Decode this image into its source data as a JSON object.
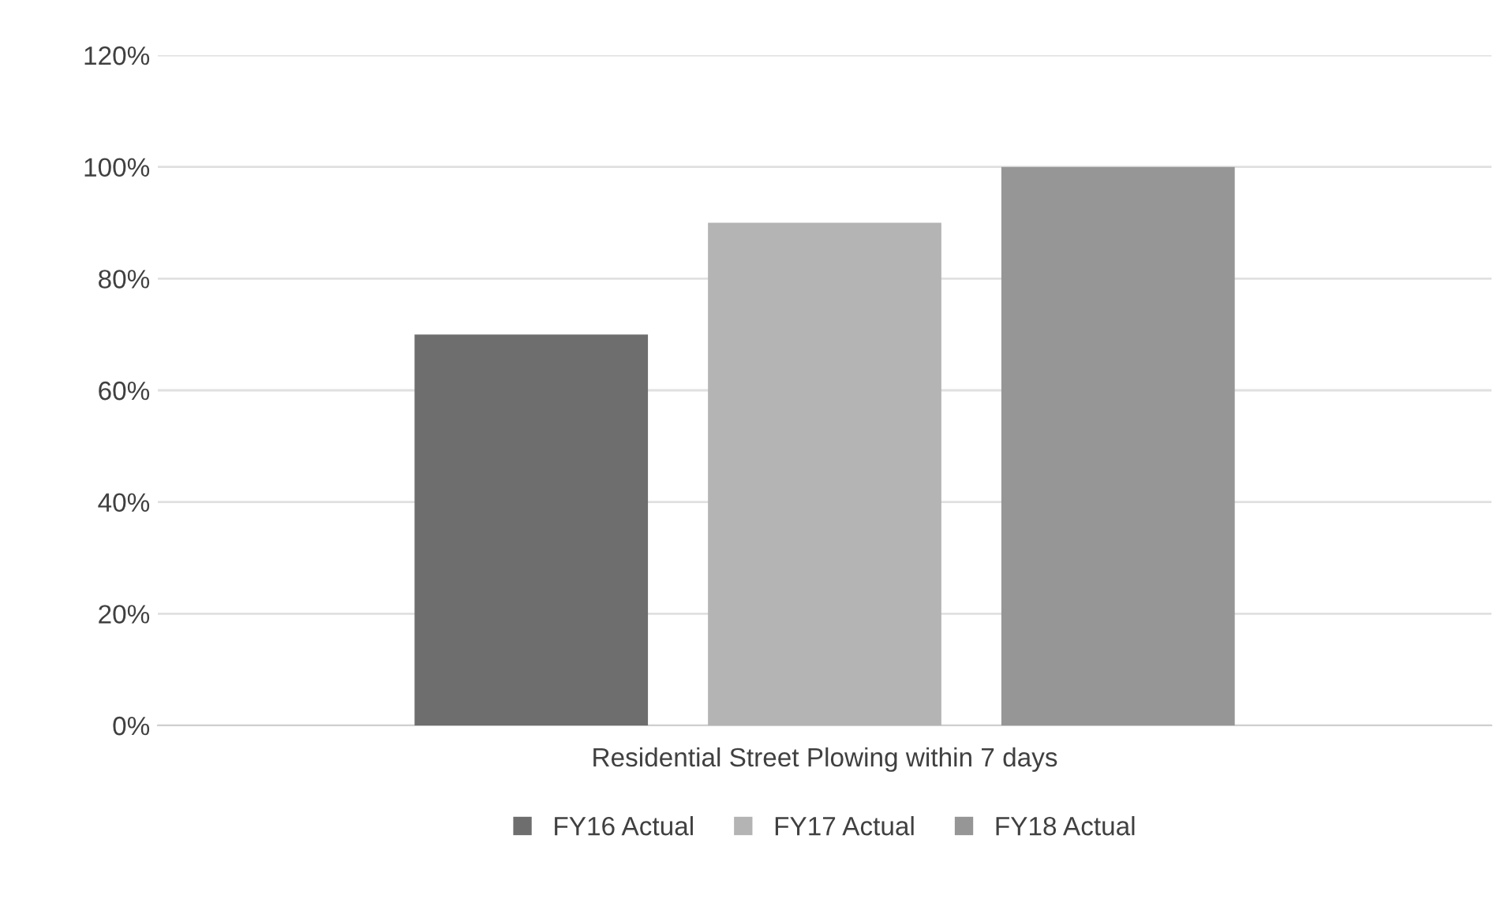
{
  "chart_data": {
    "type": "bar",
    "categories": [
      "Residential Street Plowing within 7 days"
    ],
    "series": [
      {
        "name": "FY16 Actual",
        "color": "#6e6e6e",
        "values": [
          70
        ]
      },
      {
        "name": "FY17 Actual",
        "color": "#b4b4b4",
        "values": [
          90
        ]
      },
      {
        "name": "FY18 Actual",
        "color": "#969696",
        "values": [
          100
        ]
      }
    ],
    "ylim": [
      0,
      120
    ],
    "yticks": [
      {
        "value": 0,
        "label": "0%"
      },
      {
        "value": 20,
        "label": "20%"
      },
      {
        "value": 40,
        "label": "40%"
      },
      {
        "value": 60,
        "label": "60%"
      },
      {
        "value": 80,
        "label": "80%"
      },
      {
        "value": 100,
        "label": "100%"
      },
      {
        "value": 120,
        "label": "120%"
      }
    ],
    "grid": "y",
    "legend": "bottom"
  }
}
